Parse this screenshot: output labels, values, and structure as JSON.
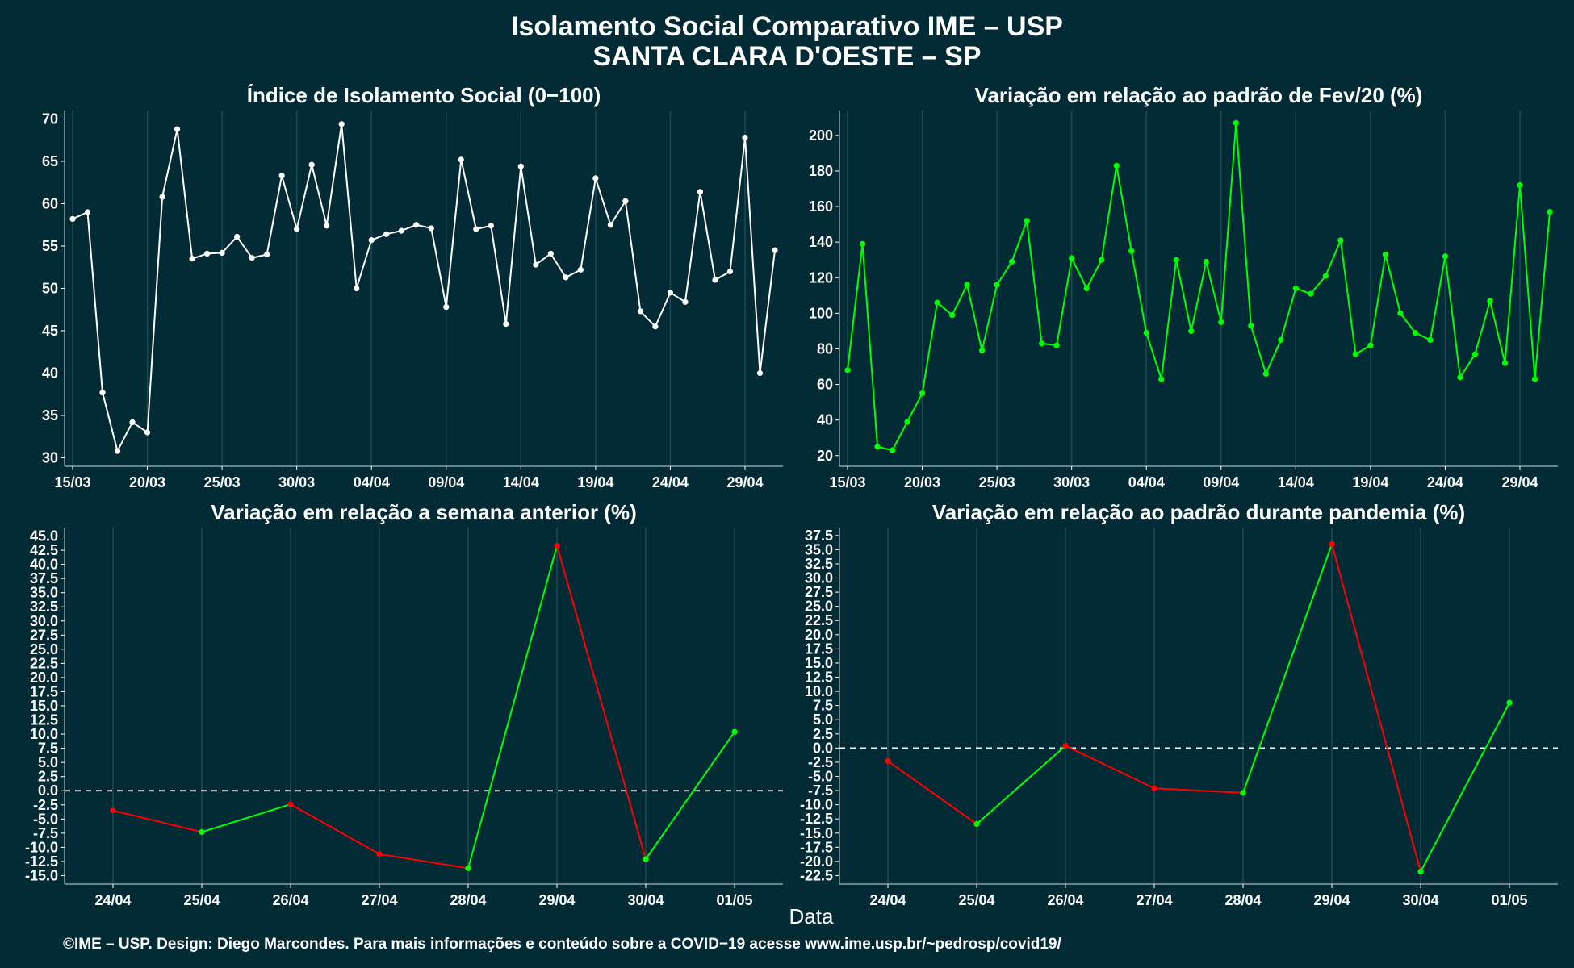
{
  "header": {
    "title": "Isolamento Social Comparativo IME – USP",
    "subtitle": "SANTA CLARA D'OESTE – SP"
  },
  "footer": {
    "xlabel": "Data",
    "credit": "©IME – USP. Design: Diego Marcondes. Para mais informações e conteúdo sobre a COVID−19 acesse www.ime.usp.br/~pedrosp/covid19/"
  },
  "colors": {
    "background": "#022b35",
    "white": "#ffffff",
    "green": "#00ff00",
    "red": "#ff0000",
    "grid": "#1d4a52"
  },
  "chart_data": [
    {
      "type": "line",
      "title": "Índice de Isolamento Social (0−100)",
      "x": [
        "15/03",
        "16/03",
        "17/03",
        "18/03",
        "19/03",
        "20/03",
        "21/03",
        "22/03",
        "23/03",
        "24/03",
        "25/03",
        "26/03",
        "27/03",
        "28/03",
        "29/03",
        "30/03",
        "31/03",
        "01/04",
        "02/04",
        "03/04",
        "04/04",
        "05/04",
        "06/04",
        "07/04",
        "08/04",
        "09/04",
        "10/04",
        "11/04",
        "12/04",
        "13/04",
        "14/04",
        "15/04",
        "16/04",
        "17/04",
        "18/04",
        "19/04",
        "20/04",
        "21/04",
        "22/04",
        "23/04",
        "24/04",
        "25/04",
        "26/04",
        "27/04",
        "28/04",
        "29/04",
        "30/04",
        "01/05"
      ],
      "series": [
        {
          "color": "#ffffff",
          "values": [
            58.2,
            59.0,
            37.7,
            30.8,
            34.2,
            33.0,
            60.8,
            68.8,
            53.5,
            54.1,
            54.2,
            56.1,
            53.6,
            54.0,
            63.3,
            57.0,
            64.6,
            57.4,
            69.4,
            50.0,
            55.7,
            56.4,
            56.8,
            57.5,
            57.1,
            47.8,
            65.2,
            57.0,
            57.4,
            45.8,
            64.4,
            52.8,
            54.1,
            51.3,
            52.2,
            63.0,
            57.5,
            60.3,
            47.3,
            45.5,
            49.5,
            48.4,
            61.4,
            51.0,
            52.0,
            67.8,
            40.0,
            54.5
          ]
        }
      ],
      "xticks": [
        "15/03",
        "20/03",
        "25/03",
        "30/03",
        "04/04",
        "09/04",
        "14/04",
        "19/04",
        "24/04",
        "29/04"
      ],
      "yticks": [
        30,
        35,
        40,
        45,
        50,
        55,
        60,
        65,
        70
      ],
      "ylim": [
        29,
        71
      ]
    },
    {
      "type": "line",
      "title": "Variação em relação ao padrão de Fev/20 (%)",
      "x": [
        "15/03",
        "16/03",
        "17/03",
        "18/03",
        "19/03",
        "20/03",
        "21/03",
        "22/03",
        "23/03",
        "24/03",
        "25/03",
        "26/03",
        "27/03",
        "28/03",
        "29/03",
        "30/03",
        "31/03",
        "01/04",
        "02/04",
        "03/04",
        "04/04",
        "05/04",
        "06/04",
        "07/04",
        "08/04",
        "09/04",
        "10/04",
        "11/04",
        "12/04",
        "13/04",
        "14/04",
        "15/04",
        "16/04",
        "17/04",
        "18/04",
        "19/04",
        "20/04",
        "21/04",
        "22/04",
        "23/04",
        "24/04",
        "25/04",
        "26/04",
        "27/04",
        "28/04",
        "29/04",
        "30/04",
        "01/05"
      ],
      "series": [
        {
          "color": "#00ff00",
          "values": [
            68,
            139,
            25,
            23,
            39,
            55,
            106,
            99,
            116,
            79,
            116,
            129,
            152,
            83,
            82,
            131,
            114,
            130,
            183,
            135,
            89,
            63,
            130,
            90,
            129,
            95,
            207,
            93,
            66,
            85,
            114,
            111,
            121,
            141,
            77,
            82,
            133,
            100,
            89,
            85,
            132,
            64,
            77,
            107,
            72,
            172,
            63,
            157
          ]
        }
      ],
      "xticks": [
        "15/03",
        "20/03",
        "25/03",
        "30/03",
        "04/04",
        "09/04",
        "14/04",
        "19/04",
        "24/04",
        "29/04"
      ],
      "yticks": [
        20,
        40,
        60,
        80,
        100,
        120,
        140,
        160,
        180,
        200
      ],
      "ylim": [
        14,
        214
      ]
    },
    {
      "type": "line",
      "title": "Variação em relação a semana anterior (%)",
      "x": [
        "24/04",
        "25/04",
        "26/04",
        "27/04",
        "28/04",
        "29/04",
        "30/04",
        "01/05"
      ],
      "values": [
        -3.5,
        -7.3,
        -2.4,
        -11.2,
        -13.7,
        43.3,
        -12.1,
        10.4
      ],
      "segment_colors": {
        "up": "#00ff00",
        "down": "#ff0000"
      },
      "reference_line": 0,
      "yticks": [
        -15.0,
        -12.5,
        -10.0,
        -7.5,
        -5.0,
        -2.5,
        0.0,
        2.5,
        5.0,
        7.5,
        10.0,
        12.5,
        15.0,
        17.5,
        20.0,
        22.5,
        25.0,
        27.5,
        30.0,
        32.5,
        35.0,
        37.5,
        40.0,
        42.5,
        45.0
      ],
      "ylim": [
        -16.5,
        46.5
      ]
    },
    {
      "type": "line",
      "title": "Variação em relação ao padrão durante pandemia (%)",
      "x": [
        "24/04",
        "25/04",
        "26/04",
        "27/04",
        "28/04",
        "29/04",
        "30/04",
        "01/05"
      ],
      "values": [
        -2.3,
        -13.4,
        0.4,
        -7.1,
        -7.9,
        36.0,
        -21.8,
        8.0
      ],
      "segment_colors": {
        "up": "#00ff00",
        "down": "#ff0000"
      },
      "reference_line": 0,
      "yticks": [
        -22.5,
        -20.0,
        -17.5,
        -15.0,
        -12.5,
        -10.0,
        -7.5,
        -5.0,
        -2.5,
        0.0,
        2.5,
        5.0,
        7.5,
        10.0,
        12.5,
        15.0,
        17.5,
        20.0,
        22.5,
        25.0,
        27.5,
        30.0,
        32.5,
        35.0,
        37.5
      ],
      "ylim": [
        -24.0,
        38.9
      ]
    }
  ]
}
